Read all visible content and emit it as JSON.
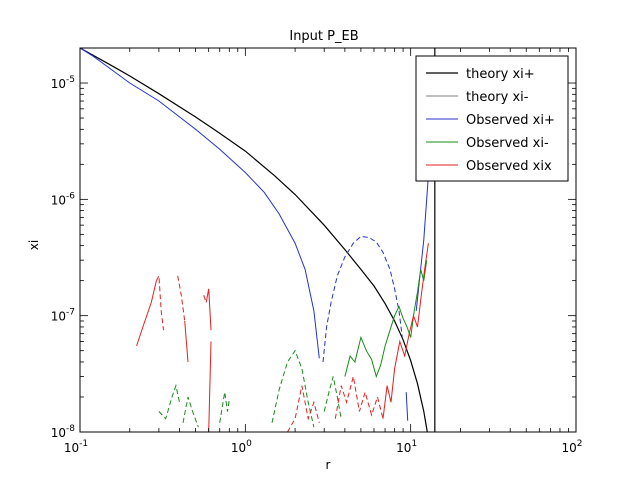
{
  "chart_data": {
    "type": "line",
    "title": "Input P_EB",
    "xlabel": "r",
    "ylabel": "xi",
    "xscale": "log",
    "yscale": "log",
    "xlim": [
      0.1,
      100
    ],
    "ylim": [
      1e-08,
      2e-05
    ],
    "x_ticks": [
      {
        "value": 0.1,
        "base": "10",
        "exp": "-1"
      },
      {
        "value": 1,
        "base": "10",
        "exp": "0"
      },
      {
        "value": 10,
        "base": "10",
        "exp": "1"
      },
      {
        "value": 100,
        "base": "10",
        "exp": "2"
      }
    ],
    "y_ticks": [
      {
        "value": 1e-08,
        "base": "10",
        "exp": "-8"
      },
      {
        "value": 1e-07,
        "base": "10",
        "exp": "-7"
      },
      {
        "value": 1e-06,
        "base": "10",
        "exp": "-6"
      },
      {
        "value": 1e-05,
        "base": "10",
        "exp": "-5"
      }
    ],
    "grid": false,
    "legend_position": "top-right",
    "vertical_line_x": 14,
    "series": [
      {
        "name": "theory xi+",
        "color": "#000000",
        "style": "solid",
        "width": 1.2,
        "points": [
          [
            0.1,
            2e-05
          ],
          [
            0.15,
            1.45e-05
          ],
          [
            0.2,
            1.15e-05
          ],
          [
            0.3,
            8.1e-06
          ],
          [
            0.5,
            5.1e-06
          ],
          [
            0.7,
            3.7e-06
          ],
          [
            1.0,
            2.6e-06
          ],
          [
            1.5,
            1.6e-06
          ],
          [
            2.0,
            1.1e-06
          ],
          [
            3.0,
            6e-07
          ],
          [
            4.0,
            3.7e-07
          ],
          [
            5.0,
            2.5e-07
          ],
          [
            6.0,
            1.8e-07
          ],
          [
            7.0,
            1.27e-07
          ],
          [
            8.0,
            9e-08
          ],
          [
            9.0,
            6.2e-08
          ],
          [
            10.0,
            4.1e-08
          ],
          [
            11.0,
            2.6e-08
          ],
          [
            12.0,
            1.5e-08
          ],
          [
            12.6,
            1e-08
          ]
        ]
      },
      {
        "name": "theory xi-",
        "color": "#555555",
        "style": "solid",
        "width": 0.8,
        "points": []
      },
      {
        "name": "Observed xi+",
        "color": "#2432c8",
        "style": "solid",
        "width": 1.0,
        "segments": [
          {
            "style": "solid",
            "points": [
              [
                0.1,
                2e-05
              ],
              [
                0.12,
                1.7e-05
              ],
              [
                0.15,
                1.35e-05
              ],
              [
                0.2,
                1e-05
              ],
              [
                0.3,
                7e-06
              ],
              [
                0.5,
                4e-06
              ],
              [
                0.7,
                2.7e-06
              ],
              [
                1.0,
                1.7e-06
              ],
              [
                1.3,
                1.15e-06
              ],
              [
                1.6,
                7.5e-07
              ],
              [
                2.0,
                4.2e-07
              ],
              [
                2.3,
                2.5e-07
              ],
              [
                2.6,
                1.1e-07
              ],
              [
                2.8,
                4.3e-08
              ]
            ]
          },
          {
            "style": "dashed",
            "points": [
              [
                2.95,
                4e-08
              ],
              [
                3.1,
                8e-08
              ],
              [
                3.3,
                1.3e-07
              ],
              [
                3.6,
                2.2e-07
              ],
              [
                4.0,
                3.2e-07
              ],
              [
                4.5,
                4.2e-07
              ],
              [
                5.0,
                4.8e-07
              ],
              [
                5.6,
                4.7e-07
              ],
              [
                6.2,
                4.3e-07
              ],
              [
                6.8,
                3.5e-07
              ],
              [
                7.5,
                2.5e-07
              ],
              [
                8.0,
                1.7e-07
              ],
              [
                8.5,
                1.1e-07
              ],
              [
                8.9,
                6.5e-08
              ]
            ]
          },
          {
            "style": "solid",
            "points": [
              [
                9.4,
                2.2e-08
              ],
              [
                9.6,
                1.25e-08
              ]
            ]
          },
          {
            "style": "solid",
            "points": [
              [
                10.8,
                1.1e-07
              ],
              [
                11.3,
                2e-07
              ],
              [
                12.0,
                4.5e-07
              ],
              [
                12.5,
                1e-06
              ],
              [
                13.0,
                2.2e-06
              ]
            ]
          }
        ]
      },
      {
        "name": "Observed xi-",
        "color": "#1a8a1a",
        "style": "solid",
        "width": 1.0,
        "segments": [
          {
            "style": "dashed",
            "points": [
              [
                0.3,
                1.5e-08
              ],
              [
                0.33,
                1.3e-08
              ],
              [
                0.36,
                2e-08
              ],
              [
                0.38,
                2.5e-08
              ],
              [
                0.4,
                1.8e-08
              ]
            ]
          },
          {
            "style": "dashed",
            "points": [
              [
                0.42,
                1.2e-08
              ],
              [
                0.45,
                2e-08
              ],
              [
                0.48,
                1.5e-08
              ],
              [
                0.52,
                1.1e-08
              ]
            ]
          },
          {
            "style": "dashed",
            "points": [
              [
                0.7,
                1.2e-08
              ],
              [
                0.75,
                2.2e-08
              ],
              [
                0.78,
                1.5e-08
              ],
              [
                0.8,
                1.9e-08
              ]
            ]
          },
          {
            "style": "dashed",
            "points": [
              [
                1.45,
                1.2e-08
              ],
              [
                1.6,
                2.3e-08
              ],
              [
                1.8,
                4e-08
              ],
              [
                2.0,
                5e-08
              ],
              [
                2.2,
                3.5e-08
              ],
              [
                2.4,
                1.8e-08
              ],
              [
                2.6,
                1.1e-08
              ]
            ]
          },
          {
            "style": "dashed",
            "points": [
              [
                3.0,
                1.5e-08
              ],
              [
                3.2,
                2.2e-08
              ],
              [
                3.4,
                3e-08
              ],
              [
                3.6,
                2e-08
              ],
              [
                3.8,
                1.3e-08
              ]
            ]
          },
          {
            "style": "solid",
            "points": [
              [
                4.0,
                3e-08
              ],
              [
                4.3,
                4.5e-08
              ],
              [
                4.6,
                4e-08
              ],
              [
                5.0,
                6.5e-08
              ],
              [
                5.4,
                5e-08
              ],
              [
                5.8,
                4.2e-08
              ],
              [
                6.2,
                3e-08
              ],
              [
                6.6,
                3.8e-08
              ],
              [
                7.0,
                5.5e-08
              ],
              [
                7.5,
                7.5e-08
              ],
              [
                8.0,
                1e-07
              ],
              [
                8.5,
                1.2e-07
              ],
              [
                9.0,
                9.5e-08
              ],
              [
                9.5,
                8e-08
              ],
              [
                10.0,
                6.5e-08
              ],
              [
                10.5,
                1.1e-07
              ],
              [
                11.0,
                1.6e-07
              ],
              [
                11.5,
                2.5e-07
              ],
              [
                12.0,
                2e-07
              ],
              [
                12.5,
                3e-07
              ]
            ]
          }
        ]
      },
      {
        "name": "Observed xix",
        "color": "#e02020",
        "style": "solid",
        "width": 1.0,
        "segments": [
          {
            "style": "solid",
            "points": [
              [
                0.22,
                5.5e-08
              ],
              [
                0.24,
                8e-08
              ],
              [
                0.27,
                1.3e-07
              ],
              [
                0.29,
                2e-07
              ]
            ]
          },
          {
            "style": "dashed",
            "points": [
              [
                0.29,
                2e-07
              ],
              [
                0.3,
                2.2e-07
              ],
              [
                0.31,
                1.1e-07
              ],
              [
                0.32,
                7.5e-08
              ]
            ]
          },
          {
            "style": "dashed",
            "points": [
              [
                0.39,
                2.2e-07
              ],
              [
                0.41,
                1.5e-07
              ],
              [
                0.43,
                9e-08
              ]
            ]
          },
          {
            "style": "solid",
            "points": [
              [
                0.43,
                9e-08
              ],
              [
                0.45,
                4e-08
              ]
            ]
          },
          {
            "style": "dashed",
            "points": [
              [
                0.56,
                1.5e-07
              ],
              [
                0.58,
                1.3e-07
              ]
            ]
          },
          {
            "style": "solid",
            "points": [
              [
                0.58,
                1.3e-07
              ],
              [
                0.6,
                1.7e-07
              ],
              [
                0.62,
                7.5e-08
              ]
            ]
          },
          {
            "style": "solid",
            "points": [
              [
                0.6,
                1e-08
              ],
              [
                0.62,
                6e-08
              ]
            ]
          },
          {
            "style": "dashed",
            "points": [
              [
                1.8,
                1e-08
              ],
              [
                2.0,
                1.3e-08
              ],
              [
                2.2,
                2.5e-08
              ],
              [
                2.4,
                1.3e-08
              ],
              [
                2.6,
                1.8e-08
              ],
              [
                2.8,
                1.2e-08
              ]
            ]
          },
          {
            "style": "dashed",
            "points": [
              [
                3.5,
                1.3e-08
              ],
              [
                3.8,
                2.5e-08
              ],
              [
                4.1,
                1.8e-08
              ],
              [
                4.5,
                3e-08
              ],
              [
                4.9,
                1.5e-08
              ],
              [
                5.3,
                2.2e-08
              ],
              [
                5.8,
                1.4e-08
              ],
              [
                6.3,
                2e-08
              ],
              [
                6.8,
                1.3e-08
              ]
            ]
          },
          {
            "style": "solid",
            "points": [
              [
                6.8,
                1.3e-08
              ],
              [
                7.2,
                2.5e-08
              ],
              [
                7.6,
                1.8e-08
              ],
              [
                8.0,
                3.5e-08
              ],
              [
                8.6,
                6e-08
              ],
              [
                9.2,
                4.5e-08
              ],
              [
                9.8,
                7e-08
              ],
              [
                10.4,
                1e-07
              ],
              [
                11.0,
                8e-08
              ],
              [
                11.6,
                1.5e-07
              ],
              [
                12.2,
                2.6e-07
              ],
              [
                12.8,
                4.2e-07
              ]
            ]
          }
        ]
      }
    ]
  }
}
